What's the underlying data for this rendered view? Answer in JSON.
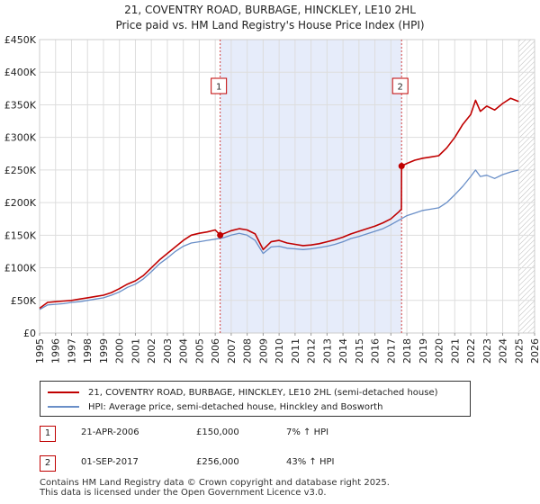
{
  "title_line1": "21, COVENTRY ROAD, BURBAGE, HINCKLEY, LE10 2HL",
  "title_line2": "Price paid vs. HM Land Registry's House Price Index (HPI)",
  "colors": {
    "property": "#c00000",
    "hpi": "#6a8fc8",
    "shade": "#e6ecfa",
    "marker_line": "#d04040"
  },
  "chart_data": {
    "type": "line",
    "xlim": [
      1995,
      2026
    ],
    "ylim": [
      0,
      450000
    ],
    "y_ticks": [
      {
        "value": 0,
        "label": "£0"
      },
      {
        "value": 50000,
        "label": "£50K"
      },
      {
        "value": 100000,
        "label": "£100K"
      },
      {
        "value": 150000,
        "label": "£150K"
      },
      {
        "value": 200000,
        "label": "£200K"
      },
      {
        "value": 250000,
        "label": "£250K"
      },
      {
        "value": 300000,
        "label": "£300K"
      },
      {
        "value": 350000,
        "label": "£350K"
      },
      {
        "value": 400000,
        "label": "£400K"
      },
      {
        "value": 450000,
        "label": "£450K"
      }
    ],
    "x_ticks": [
      "1995",
      "1996",
      "1997",
      "1998",
      "1999",
      "2000",
      "2001",
      "2002",
      "2003",
      "2004",
      "2005",
      "2006",
      "2007",
      "2008",
      "2009",
      "2010",
      "2011",
      "2012",
      "2013",
      "2014",
      "2015",
      "2016",
      "2017",
      "2018",
      "2019",
      "2020",
      "2021",
      "2022",
      "2023",
      "2024",
      "2025",
      "2026"
    ],
    "shaded_range": [
      2006.31,
      2017.67
    ],
    "forecast_start": 2025.0,
    "series": [
      {
        "name": "21, COVENTRY ROAD, BURBAGE, HINCKLEY, LE10 2HL (semi-detached house)",
        "x": [
          1995.0,
          1995.5,
          1996.0,
          1996.5,
          1997.0,
          1997.5,
          1998.0,
          1998.5,
          1999.0,
          1999.5,
          2000.0,
          2000.5,
          2001.0,
          2001.5,
          2002.0,
          2002.5,
          2003.0,
          2003.5,
          2004.0,
          2004.5,
          2005.0,
          2005.5,
          2006.0,
          2006.31,
          2006.5,
          2007.0,
          2007.5,
          2008.0,
          2008.5,
          2009.0,
          2009.5,
          2010.0,
          2010.5,
          2011.0,
          2011.5,
          2012.0,
          2012.5,
          2013.0,
          2013.5,
          2014.0,
          2014.5,
          2015.0,
          2015.5,
          2016.0,
          2016.5,
          2017.0,
          2017.5,
          2017.66,
          2017.67,
          2018.0,
          2018.5,
          2019.0,
          2019.5,
          2020.0,
          2020.5,
          2021.0,
          2021.5,
          2022.0,
          2022.3,
          2022.6,
          2023.0,
          2023.5,
          2024.0,
          2024.5,
          2025.0
        ],
        "values": [
          38000,
          47000,
          48000,
          49000,
          50000,
          52000,
          54000,
          56000,
          58000,
          62000,
          68000,
          75000,
          80000,
          88000,
          100000,
          112000,
          122000,
          132000,
          142000,
          150000,
          153000,
          155000,
          158000,
          150000,
          152000,
          157000,
          160000,
          158000,
          152000,
          128000,
          140000,
          142000,
          138000,
          136000,
          134000,
          135000,
          137000,
          140000,
          143000,
          147000,
          152000,
          156000,
          160000,
          164000,
          169000,
          175000,
          186000,
          190000,
          256000,
          260000,
          265000,
          268000,
          270000,
          272000,
          284000,
          300000,
          320000,
          335000,
          357000,
          340000,
          348000,
          342000,
          352000,
          360000,
          355000
        ]
      },
      {
        "name": "HPI: Average price, semi-detached house, Hinckley and Bosworth",
        "x": [
          1995.0,
          1995.5,
          1996.0,
          1996.5,
          1997.0,
          1997.5,
          1998.0,
          1998.5,
          1999.0,
          1999.5,
          2000.0,
          2000.5,
          2001.0,
          2001.5,
          2002.0,
          2002.5,
          2003.0,
          2003.5,
          2004.0,
          2004.5,
          2005.0,
          2005.5,
          2006.0,
          2006.5,
          2007.0,
          2007.5,
          2008.0,
          2008.5,
          2009.0,
          2009.5,
          2010.0,
          2010.5,
          2011.0,
          2011.5,
          2012.0,
          2012.5,
          2013.0,
          2013.5,
          2014.0,
          2014.5,
          2015.0,
          2015.5,
          2016.0,
          2016.5,
          2017.0,
          2017.5,
          2018.0,
          2018.5,
          2019.0,
          2019.5,
          2020.0,
          2020.5,
          2021.0,
          2021.5,
          2022.0,
          2022.3,
          2022.6,
          2023.0,
          2023.5,
          2024.0,
          2024.5,
          2025.0
        ],
        "values": [
          36000,
          43000,
          44000,
          45000,
          47000,
          48000,
          50000,
          52000,
          54000,
          58000,
          63000,
          70000,
          75000,
          83000,
          94000,
          106000,
          115000,
          125000,
          133000,
          138000,
          140000,
          142000,
          144000,
          146000,
          150000,
          153000,
          150000,
          142000,
          122000,
          132000,
          133000,
          130000,
          129000,
          128000,
          129000,
          131000,
          133000,
          136000,
          140000,
          145000,
          148000,
          152000,
          156000,
          160000,
          166000,
          173000,
          180000,
          184000,
          188000,
          190000,
          192000,
          200000,
          212000,
          225000,
          240000,
          250000,
          240000,
          242000,
          237000,
          243000,
          247000,
          250000
        ]
      }
    ],
    "annotations": [
      {
        "label": "1",
        "x": 2006.31,
        "value": 150000
      },
      {
        "label": "2",
        "x": 2017.67,
        "value": 256000
      }
    ]
  },
  "legend": [
    {
      "label": "21, COVENTRY ROAD, BURBAGE, HINCKLEY, LE10 2HL (semi-detached house)"
    },
    {
      "label": "HPI: Average price, semi-detached house, Hinckley and Bosworth"
    }
  ],
  "transactions": [
    {
      "num": "1",
      "date": "21-APR-2006",
      "price": "£150,000",
      "hpi": "7% ↑ HPI"
    },
    {
      "num": "2",
      "date": "01-SEP-2017",
      "price": "£256,000",
      "hpi": "43% ↑ HPI"
    }
  ],
  "footer_line1": "Contains HM Land Registry data © Crown copyright and database right 2025.",
  "footer_line2": "This data is licensed under the Open Government Licence v3.0."
}
